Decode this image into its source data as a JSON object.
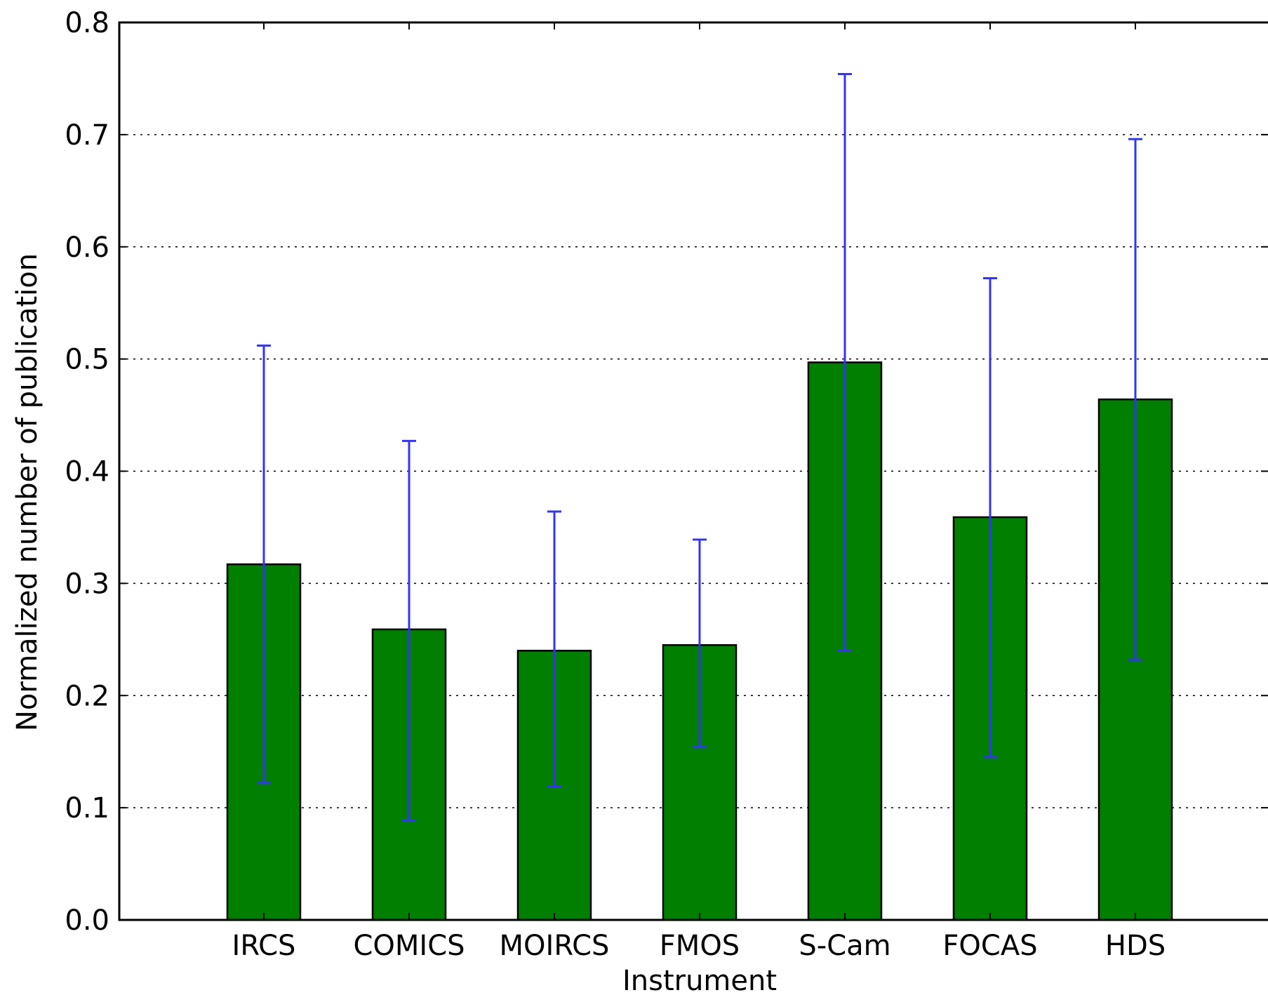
{
  "chart_data": {
    "type": "bar",
    "title": "",
    "xlabel": "Instrument",
    "ylabel": "Normalized number of publication",
    "categories": [
      "IRCS",
      "COMICS",
      "MOIRCS",
      "FMOS",
      "S-Cam",
      "FOCAS",
      "HDS"
    ],
    "values": [
      0.317,
      0.259,
      0.24,
      0.245,
      0.497,
      0.359,
      0.464
    ],
    "error_bars": {
      "lower": [
        0.122,
        0.089,
        0.119,
        0.154,
        0.24,
        0.145,
        0.232
      ],
      "upper": [
        0.512,
        0.427,
        0.364,
        0.339,
        0.754,
        0.572,
        0.696
      ]
    },
    "ylim": [
      0.0,
      0.8
    ],
    "yticks": [
      "0.0",
      "0.1",
      "0.2",
      "0.3",
      "0.4",
      "0.5",
      "0.6",
      "0.7",
      "0.8"
    ],
    "ytick_values": [
      0.0,
      0.1,
      0.2,
      0.3,
      0.4,
      0.5,
      0.6,
      0.7,
      0.8
    ],
    "grid": "horizontal dotted",
    "colors": {
      "bar": "#007f00",
      "error_bar": "#3333ff",
      "grid": "#000000"
    }
  }
}
